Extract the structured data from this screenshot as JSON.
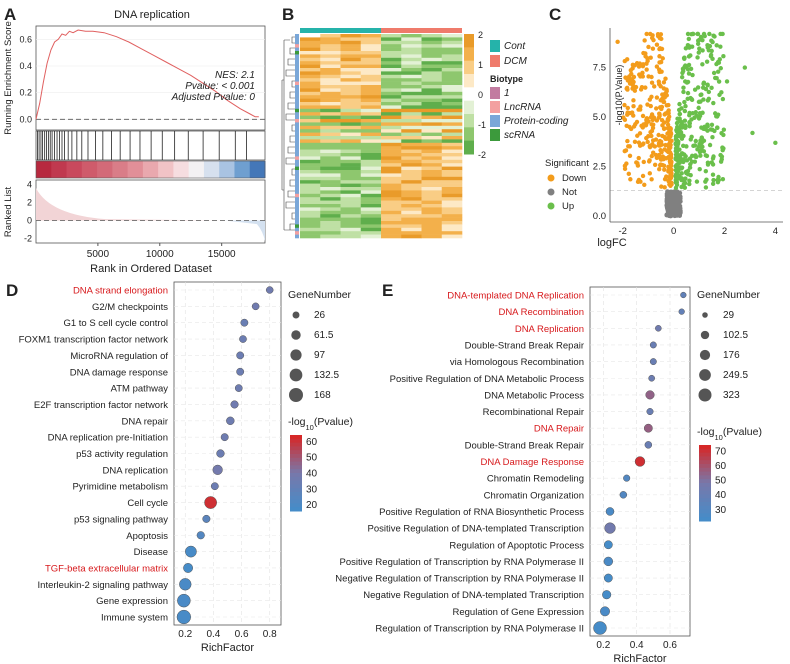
{
  "panels": {
    "A": {
      "letter": "A",
      "title": "DNA replication",
      "ylabel_top": "Running Enrichment Score",
      "ylabel_bottom": "Ranked List",
      "xlabel": "Rank in Ordered Dataset",
      "stats": [
        "NES: 2.1",
        "Pvalue: < 0.001",
        "Adjusted Pvalue: 0"
      ]
    },
    "B": {
      "letter": "B"
    },
    "C": {
      "letter": "C",
      "ylabel": "-log10(P.Value)",
      "xlabel": "logFC",
      "legend_title": "Significant"
    },
    "D": {
      "letter": "D",
      "xlabel": "RichFactor",
      "size_title": "GeneNumber",
      "color_title_main": "-log",
      "color_title_sub": "10",
      "color_title_end": "(Pvalue)"
    },
    "E": {
      "letter": "E",
      "xlabel": "RichFactor",
      "size_title": "GeneNumber",
      "color_title_main": "-log",
      "color_title_sub": "10",
      "color_title_end": "(Pvalue)"
    }
  },
  "colors": {
    "red_text": "#d7191c",
    "down": "#f39c1b",
    "not": "#808080",
    "up": "#6abf4b",
    "cont": "#25b3aa",
    "dcm": "#ef7b6b",
    "bt1": "#c27ba0",
    "lnc": "#f3a0a0",
    "pc": "#7aa7d8",
    "sc": "#3c9a3c"
  },
  "chart_data": [
    {
      "id": "A",
      "type": "line",
      "title": "DNA replication",
      "xlabel": "Rank in Ordered Dataset",
      "ylabel": "Running Enrichment Score",
      "x_ticks": [
        5000,
        10000,
        15000
      ],
      "xlim": [
        0,
        18500
      ],
      "y_ticks_es": [
        0.0,
        0.2,
        0.4,
        0.6
      ],
      "ylim_es": [
        -0.08,
        0.7
      ],
      "y_ticks_rank": [
        4,
        2,
        0,
        -2
      ],
      "ylim_rank": [
        -2.5,
        4.5
      ],
      "es_curve": [
        [
          0,
          0
        ],
        [
          300,
          0.12
        ],
        [
          600,
          0.28
        ],
        [
          900,
          0.42
        ],
        [
          1200,
          0.52
        ],
        [
          1500,
          0.58
        ],
        [
          1800,
          0.6
        ],
        [
          2100,
          0.64
        ],
        [
          2400,
          0.63
        ],
        [
          2700,
          0.66
        ],
        [
          3000,
          0.65
        ],
        [
          3400,
          0.67
        ],
        [
          4000,
          0.66
        ],
        [
          4600,
          0.66
        ],
        [
          5500,
          0.65
        ],
        [
          6500,
          0.62
        ],
        [
          7500,
          0.58
        ],
        [
          8500,
          0.53
        ],
        [
          9500,
          0.48
        ],
        [
          10500,
          0.43
        ],
        [
          11500,
          0.38
        ],
        [
          12500,
          0.33
        ],
        [
          13500,
          0.27
        ],
        [
          14500,
          0.21
        ],
        [
          15500,
          0.14
        ],
        [
          16500,
          0.08
        ],
        [
          17300,
          0.04
        ],
        [
          17700,
          0.02
        ],
        [
          18000,
          0.02
        ]
      ],
      "gene_ranks": [
        120,
        250,
        400,
        520,
        700,
        850,
        1000,
        1150,
        1300,
        1500,
        1700,
        1900,
        2100,
        2300,
        2600,
        2900,
        3300,
        3700,
        4200,
        4800,
        5400,
        6100,
        6800,
        7600,
        8400,
        9300,
        10200,
        11200,
        12300,
        13500,
        14800,
        16100,
        17000
      ]
    },
    {
      "id": "B",
      "type": "heatmap",
      "groups": [
        "Cont",
        "DCM"
      ],
      "biotype_title": "Biotype",
      "biotypes": [
        "1",
        "LncRNA",
        "Protein-coding",
        "scRNA"
      ],
      "color_scale_ticks": [
        2,
        1,
        0,
        -1,
        -2
      ],
      "columns": 8,
      "rows": 60
    },
    {
      "id": "C",
      "type": "scatter",
      "xlabel": "logFC",
      "ylabel": "-log10(P.Value)",
      "x_ticks": [
        -2,
        0,
        2,
        4
      ],
      "xlim": [
        -2.5,
        4.3
      ],
      "y_ticks": [
        0.0,
        2.5,
        5.0,
        7.5
      ],
      "ylim": [
        -0.3,
        9.5
      ],
      "legend": [
        "Down",
        "Not",
        "Up"
      ],
      "threshold_y": 1.3
    },
    {
      "id": "D",
      "type": "scatter",
      "xlabel": "RichFactor",
      "x_ticks": [
        0.2,
        0.4,
        0.6,
        0.8
      ],
      "xlim": [
        0.12,
        0.88
      ],
      "terms": [
        {
          "name": "DNA strand elongation",
          "x": 0.8,
          "size": 26,
          "p": 36,
          "red": true
        },
        {
          "name": "G2/M checkpoints",
          "x": 0.7,
          "size": 27,
          "p": 36,
          "red": false
        },
        {
          "name": "G1 to S cell cycle control",
          "x": 0.62,
          "size": 30,
          "p": 33,
          "red": false
        },
        {
          "name": "FOXM1 transcription factor network",
          "x": 0.61,
          "size": 28,
          "p": 34,
          "red": false
        },
        {
          "name": "MicroRNA regulation of",
          "x": 0.59,
          "size": 30,
          "p": 34,
          "red": false
        },
        {
          "name": "DNA damage response",
          "x": 0.59,
          "size": 30,
          "p": 34,
          "red": false
        },
        {
          "name": "ATM pathway",
          "x": 0.58,
          "size": 29,
          "p": 35,
          "red": false
        },
        {
          "name": "E2F transcription factor network",
          "x": 0.55,
          "size": 33,
          "p": 36,
          "red": false
        },
        {
          "name": "DNA repair",
          "x": 0.52,
          "size": 38,
          "p": 35,
          "red": false
        },
        {
          "name": "DNA replication pre-Initiation",
          "x": 0.48,
          "size": 31,
          "p": 35,
          "red": false
        },
        {
          "name": "p53 activity regulation",
          "x": 0.45,
          "size": 36,
          "p": 34,
          "red": false
        },
        {
          "name": "DNA replication",
          "x": 0.43,
          "size": 66,
          "p": 38,
          "red": false
        },
        {
          "name": "Pyrimidine metabolism",
          "x": 0.41,
          "size": 30,
          "p": 34,
          "red": false
        },
        {
          "name": "Cell cycle",
          "x": 0.38,
          "size": 120,
          "p": 62,
          "red": false
        },
        {
          "name": "p53 signaling pathway",
          "x": 0.35,
          "size": 32,
          "p": 26,
          "red": false
        },
        {
          "name": "Apoptosis",
          "x": 0.31,
          "size": 34,
          "p": 22,
          "red": false
        },
        {
          "name": "Disease",
          "x": 0.24,
          "size": 96,
          "p": 17,
          "red": false
        },
        {
          "name": "TGF-beta extracellular matrix",
          "x": 0.22,
          "size": 60,
          "p": 16,
          "red": true
        },
        {
          "name": "Interleukin-2 signaling pathway",
          "x": 0.2,
          "size": 110,
          "p": 18,
          "red": false
        },
        {
          "name": "Gene expression",
          "x": 0.19,
          "size": 140,
          "p": 18,
          "red": false
        },
        {
          "name": "Immune system",
          "x": 0.19,
          "size": 160,
          "p": 17,
          "red": false
        }
      ],
      "size_legend": [
        26,
        61.5,
        97,
        132.5,
        168
      ],
      "color_ticks": [
        60,
        50,
        40,
        30,
        20
      ]
    },
    {
      "id": "E",
      "type": "scatter",
      "xlabel": "RichFactor",
      "x_ticks": [
        0.2,
        0.4,
        0.6
      ],
      "xlim": [
        0.12,
        0.72
      ],
      "terms": [
        {
          "name": "DNA-templated DNA Replication",
          "x": 0.68,
          "size": 32,
          "p": 36,
          "red": true
        },
        {
          "name": "DNA Recombination",
          "x": 0.67,
          "size": 32,
          "p": 37,
          "red": true
        },
        {
          "name": "DNA Replication",
          "x": 0.53,
          "size": 38,
          "p": 44,
          "red": true
        },
        {
          "name": "Double-Strand Break Repair",
          "x": 0.5,
          "size": 45,
          "p": 40,
          "red": false
        },
        {
          "name": "via Homologous Recombination",
          "x": 0.5,
          "size": 45,
          "p": 40,
          "red": false
        },
        {
          "name": "Positive Regulation of DNA Metabolic Process",
          "x": 0.49,
          "size": 40,
          "p": 42,
          "red": false
        },
        {
          "name": "DNA Metabolic Process",
          "x": 0.48,
          "size": 110,
          "p": 55,
          "red": false
        },
        {
          "name": "Recombinational Repair",
          "x": 0.48,
          "size": 48,
          "p": 40,
          "red": false
        },
        {
          "name": "DNA Repair",
          "x": 0.47,
          "size": 100,
          "p": 56,
          "red": true
        },
        {
          "name": "Double-Strand Break Repair",
          "x": 0.47,
          "size": 60,
          "p": 40,
          "red": false
        },
        {
          "name": "DNA Damage Response",
          "x": 0.42,
          "size": 160,
          "p": 72,
          "red": true
        },
        {
          "name": "Chromatin Remodeling",
          "x": 0.34,
          "size": 50,
          "p": 28,
          "red": false
        },
        {
          "name": "Chromatin Organization",
          "x": 0.32,
          "size": 60,
          "p": 28,
          "red": false
        },
        {
          "name": "Positive Regulation of RNA Biosynthetic Process",
          "x": 0.24,
          "size": 90,
          "p": 24,
          "red": false
        },
        {
          "name": "Positive Regulation of DNA-templated Transcription",
          "x": 0.24,
          "size": 200,
          "p": 45,
          "red": false
        },
        {
          "name": "Regulation of Apoptotic Process",
          "x": 0.23,
          "size": 100,
          "p": 22,
          "red": false
        },
        {
          "name": "Positive Regulation of Transcription by RNA Polymerase II",
          "x": 0.23,
          "size": 120,
          "p": 24,
          "red": false
        },
        {
          "name": "Negative Regulation of Transcription by RNA Polymerase II",
          "x": 0.23,
          "size": 100,
          "p": 22,
          "red": false
        },
        {
          "name": "Negative Regulation of DNA-templated Transcription",
          "x": 0.22,
          "size": 110,
          "p": 22,
          "red": false
        },
        {
          "name": "Regulation of Gene Expression",
          "x": 0.21,
          "size": 140,
          "p": 24,
          "red": false
        },
        {
          "name": "Regulation of Transcription by RNA Polymerase II",
          "x": 0.18,
          "size": 323,
          "p": 22,
          "red": false
        }
      ],
      "size_legend": [
        29,
        102.5,
        176,
        249.5,
        323
      ],
      "color_ticks": [
        70,
        60,
        50,
        40,
        30
      ]
    }
  ]
}
